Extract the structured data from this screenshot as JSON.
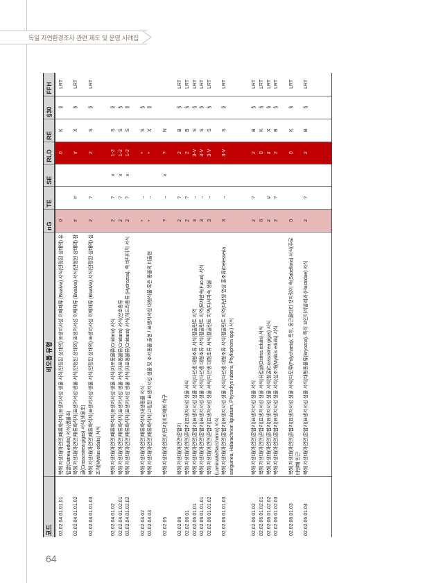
{
  "running_header": "독일 자연환경조사 관련 제도 및 운영 사례집",
  "page_number": "64",
  "colors": {
    "rld_column": "#c00000",
    "ng_column": "#e6b9b9",
    "header_cell": "#d6d6d6"
  },
  "table": {
    "headers": [
      "코드",
      "비오톱 유형",
      "nG",
      "TE",
      "SE",
      "RLD",
      "RE",
      "§30",
      "FFH"
    ],
    "rows": [
      {
        "code": "02.02.04.01.01.01",
        "desc": "북해 저생대(아연안)패류화석지(표생저서성 생물 서식(안정된 상태의) 표생저서성 이매패류 (Bivalvia) 서식(안정된 상태의) 유럽굴(Ostrea edulis) 서식(생물초)",
        "nG": "0",
        "TE": "",
        "SE": "",
        "RLD": "0",
        "RE": "K",
        "s30": "§",
        "FFH": "LRT"
      },
      {
        "code": "02.02.04.01.01.02",
        "desc": "북해 저생대(아연안)패류화석지(표생저서성 생물 서식(안정된 상태의) 표생저서성 이매패류 (Bivalvia) 서식(안정된 상태의) 참굴(Crassostrea gigas) 서식(생물초)",
        "nG": "#",
        "TE": "#",
        "SE": "",
        "RLD": "#",
        "RE": "X",
        "s30": "§",
        "FFH": "LRT"
      },
      {
        "code": "02.02.04.01.01.03",
        "desc": "북해 저생대(아연안)패류화석지(표생저서성 생물 서식(안정된 상태의) 표생저서성 이매패류 (Bivalvia) 서식(안정된 상태의) 섭조개(Mytilus edulis) 서식",
        "nG": "2",
        "TE": "?",
        "SE": "",
        "RLD": "2",
        "RE": "S",
        "s30": "§",
        "FFH": "LRT"
      },
      {
        "code": "02.02.04.01.02",
        "desc": "북해 저생대(아연안)패류화석지(표생저서성 생물 서식(자포동물류(Cnidaria) 서식",
        "nG": "2",
        "TE": "?",
        "SE": "x",
        "RLD": "1-2",
        "RE": "S",
        "s30": "§",
        "FFH": ""
      },
      {
        "code": "02.02.04.01.02.01",
        "desc": "북해 저생대(아연안)패류화석지(표생저서성 생물 서식(자포동물류(Cnidaria) 서식(산호충류",
        "nG": "2",
        "TE": "?",
        "SE": "x",
        "RLD": "1-2",
        "RE": "S",
        "s30": "§",
        "FFH": ""
      },
      {
        "code": "02.02.04.01.02.02",
        "desc": "북해 저생대(아연안)패류화석지(표생저서성 생물 서식(자포동물류(Cnidaria) 서식(히드라충류 (Hydrozoa), 즉 바다이끼 서식",
        "nG": "2",
        "TE": "?",
        "SE": "x",
        "RLD": "1-2",
        "RE": "S",
        "s30": "§",
        "FFH": ""
      },
      {
        "code": "02.02.04.02",
        "desc": "북해 저생대(아연안)패류화석지(내생동물 서식",
        "nG": "*",
        "TE": "→",
        "SE": "",
        "RLD": "*",
        "RE": "S",
        "s30": "§",
        "FFH": ""
      },
      {
        "code": "02.02.04.03",
        "desc": "북해 저생대(아연안)패류화석지(고립된 표생저서성 생물 및 조서동물 출현 / 표생저서성 대형식물 혹은 동물의 비출현",
        "nG": "*",
        "TE": "→",
        "SE": "",
        "RLD": "*",
        "RE": "X",
        "s30": "§",
        "FFH": ""
      },
      {
        "code": "02.02.05",
        "desc": "북해 저생대(아연안)이탄지(비만해화 하구",
        "nG": "?",
        "TE": "→",
        "SE": "x",
        "RLD": "?",
        "RE": "N",
        "s30": "",
        "FFH": ""
      },
      {
        "code": "02.02.06",
        "desc": "북해 저생대(아연안)혼합지",
        "nG": "2",
        "TE": "?",
        "SE": "",
        "RLD": "2",
        "RE": "B",
        "s30": "§",
        "FFH": "LRT"
      },
      {
        "code": "02.02.06.01",
        "desc": "북해 저생대(아연안)혼합지(표생저서성 생물 서식",
        "nG": "2",
        "TE": "?",
        "SE": "",
        "RLD": "2",
        "RE": "B",
        "s30": "§",
        "FFH": "LRT"
      },
      {
        "code": "02.02.06.01.01",
        "desc": "북해 저생대(아연안)혼합지(표생저서성 생물 서식(다년생 대형조류 서식(펠골란트 지역",
        "nG": "3",
        "TE": "→",
        "SE": "",
        "RLD": "3-V",
        "RE": "S",
        "s30": "§",
        "FFH": "LRT"
      },
      {
        "code": "02.02.06.01.01.01",
        "desc": "북해 저생대(아연안)혼합지(표생저서성 생물 서식(다년생 대형조류 서식(펠골란트 지역(모자반속(Fucus) 서식",
        "nG": "3",
        "TE": "→",
        "SE": "",
        "RLD": "3-V",
        "RE": "S",
        "s30": "§",
        "FFH": "LRT"
      },
      {
        "code": "02.02.06.01.01.02",
        "desc": "북해 저생대(아연안)혼합지(표생저서성 생물 서식(다년생 대형조류 서식(펠골란트 지역(다시마속 생물(Laminaria/Saccharina) 서식",
        "nG": "3",
        "TE": "→",
        "SE": "",
        "RLD": "3-V",
        "RE": "S",
        "s30": "§",
        "FFH": "LRT"
      },
      {
        "code": "02.02.06.01.01.03",
        "desc": "북해 저생대(아연안)혼합지(표생저서성 생물 서식(다년생 대형조류 서식(펠골란트 지역(다년생 엽상 홍조류(Delesseria sanguinea, Halarachnion ligulatum, Phycodrys rubens, Phyllophora spp.) 서식",
        "nG": "3",
        "TE": "→",
        "SE": "",
        "RLD": "3-V",
        "RE": "S",
        "s30": "§",
        "FFH": "LRT"
      },
      {
        "code": "02.02.06.01.02",
        "desc": "북해 저생대(아연안)혼합지(표생저서성 생물 서식",
        "nG": "2",
        "TE": "?",
        "SE": "",
        "RLD": "2",
        "RE": "B",
        "s30": "§",
        "FFH": "LRT"
      },
      {
        "code": "02.02.06.01.02.01",
        "desc": "북해 저생대(아연안)혼합지(표생저서성 생물 서식(유럽굴(Ostrea edulis) 서식",
        "nG": "0",
        "TE": "",
        "SE": "",
        "RLD": "0",
        "RE": "K",
        "s30": "§",
        "FFH": "LRT"
      },
      {
        "code": "02.02.06.01.02.02",
        "desc": "북해 저생대(아연안)혼합지(표생저서성 생물 서식(참굴(Crassostrea gigas) 서식",
        "nG": "#",
        "TE": "#",
        "SE": "",
        "RLD": "#",
        "RE": "X",
        "s30": "§",
        "FFH": "LRT"
      },
      {
        "code": "02.02.06.01.02.03",
        "desc": "북해 저생대(아연안)혼합지(표생저서성 생물 서식(섭조개(Mytilus edulis) 서식",
        "nG": "2",
        "TE": "?",
        "SE": "",
        "RLD": "2",
        "RE": "B",
        "s30": "§",
        "FFH": "LRT"
      },
      {
        "code": "02.02.06.01.03",
        "desc": "북해 저생대(아연안)혼합지(표생저서성 생물 서식(다모류(Polychaeta), 특히, 둥근울타리 갯지렁이 속(Sabellaria) 서식(주로 바덴해 인근",
        "nG": "0",
        "TE": "",
        "SE": "",
        "RLD": "0",
        "RE": "K",
        "s30": "§",
        "FFH": "LRT"
      },
      {
        "code": "02.02.06.01.04",
        "desc": "북해 저생대(아연안)혼합지(표생저서성 생물 서식(태형동물류(Bryozoa), 특히 꼬인이끼벌레과 (Flustridae) 서식",
        "nG": "2",
        "TE": "?",
        "SE": "",
        "RLD": "2",
        "RE": "B",
        "s30": "§",
        "FFH": "LRT"
      }
    ]
  }
}
